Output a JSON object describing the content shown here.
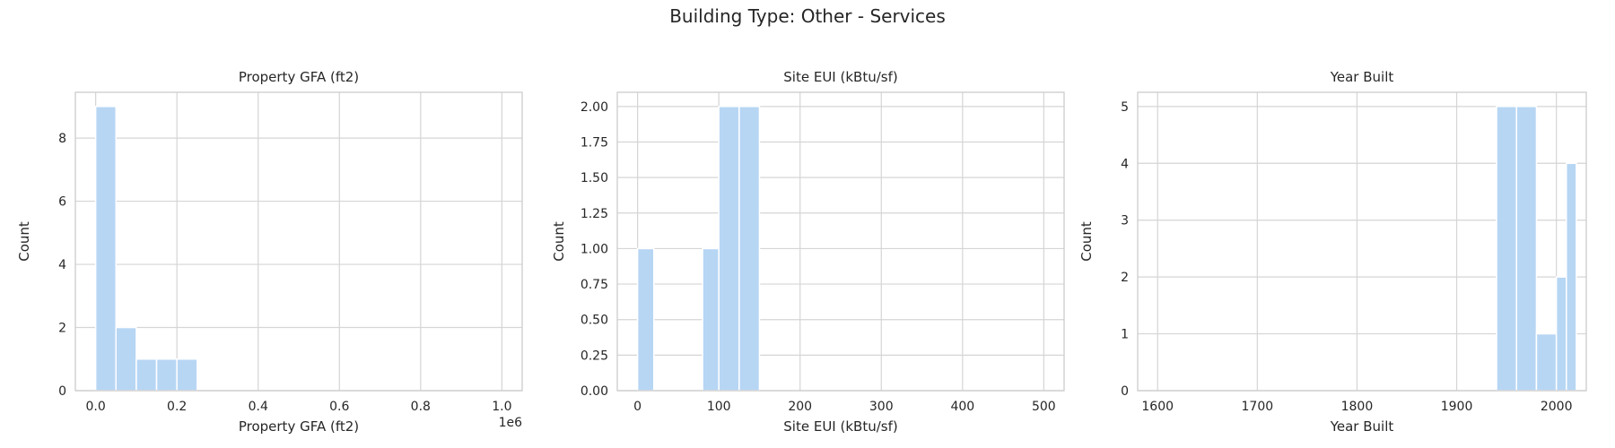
{
  "figure_title": "Building Type: Other - Services",
  "colors": {
    "bar": "#b7d6f4",
    "bar_edge": "#ffffff"
  },
  "chart_data": [
    {
      "type": "bar",
      "title": "Property GFA (ft2)",
      "xlabel": "Property GFA (ft2)",
      "ylabel": "Count",
      "offset_label": "1e6",
      "xlim": [
        -50000,
        1050000
      ],
      "ylim": [
        0,
        9.45
      ],
      "xticks": [
        0,
        200000,
        400000,
        600000,
        800000,
        1000000
      ],
      "xtick_labels": [
        "0.0",
        "0.2",
        "0.4",
        "0.6",
        "0.8",
        "1.0"
      ],
      "yticks": [
        0,
        2,
        4,
        6,
        8
      ],
      "ytick_labels": [
        "0",
        "2",
        "4",
        "6",
        "8"
      ],
      "bins": [
        {
          "x0": 0,
          "x1": 50000,
          "count": 9
        },
        {
          "x0": 50000,
          "x1": 100000,
          "count": 2
        },
        {
          "x0": 100000,
          "x1": 150000,
          "count": 1
        },
        {
          "x0": 150000,
          "x1": 200000,
          "count": 1
        },
        {
          "x0": 200000,
          "x1": 250000,
          "count": 1
        }
      ]
    },
    {
      "type": "bar",
      "title": "Site EUI (kBtu/sf)",
      "xlabel": "Site EUI (kBtu/sf)",
      "ylabel": "Count",
      "xlim": [
        -25,
        525
      ],
      "ylim": [
        0,
        2.1
      ],
      "xticks": [
        0,
        100,
        200,
        300,
        400,
        500
      ],
      "xtick_labels": [
        "0",
        "100",
        "200",
        "300",
        "400",
        "500"
      ],
      "yticks": [
        0,
        0.25,
        0.5,
        0.75,
        1.0,
        1.25,
        1.5,
        1.75,
        2.0
      ],
      "ytick_labels": [
        "0.00",
        "0.25",
        "0.50",
        "0.75",
        "1.00",
        "1.25",
        "1.50",
        "1.75",
        "2.00"
      ],
      "bins": [
        {
          "x0": 0,
          "x1": 20,
          "count": 1
        },
        {
          "x0": 80,
          "x1": 100,
          "count": 1
        },
        {
          "x0": 100,
          "x1": 125,
          "count": 2
        },
        {
          "x0": 125,
          "x1": 150,
          "count": 2
        }
      ]
    },
    {
      "type": "bar",
      "title": "Year Built",
      "xlabel": "Year Built",
      "ylabel": "Count",
      "xlim": [
        1580,
        2030
      ],
      "ylim": [
        0,
        5.25
      ],
      "xticks": [
        1600,
        1700,
        1800,
        1900,
        2000
      ],
      "xtick_labels": [
        "1600",
        "1700",
        "1800",
        "1900",
        "2000"
      ],
      "yticks": [
        0,
        1,
        2,
        3,
        4,
        5
      ],
      "ytick_labels": [
        "0",
        "1",
        "2",
        "3",
        "4",
        "5"
      ],
      "bins": [
        {
          "x0": 1940,
          "x1": 1960,
          "count": 5
        },
        {
          "x0": 1960,
          "x1": 1980,
          "count": 5
        },
        {
          "x0": 1980,
          "x1": 2000,
          "count": 1
        },
        {
          "x0": 2000,
          "x1": 2010,
          "count": 2
        },
        {
          "x0": 2010,
          "x1": 2020,
          "count": 4
        }
      ]
    }
  ]
}
